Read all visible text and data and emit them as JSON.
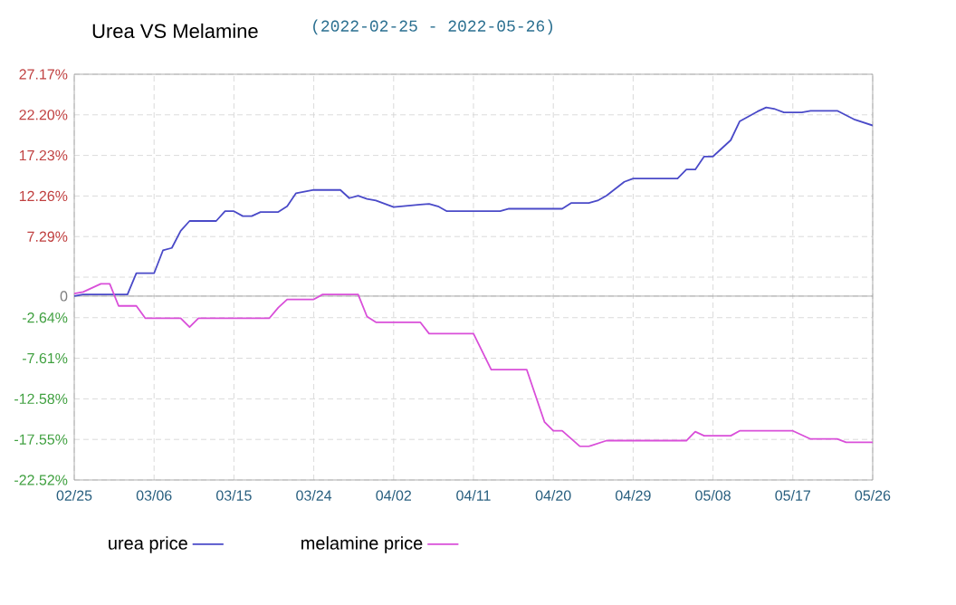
{
  "chart_data": {
    "type": "line",
    "title": "Urea VS Melamine",
    "subtitle": "(2022-02-25 - 2022-05-26)",
    "xlim": [
      "2022-02-25",
      "2022-05-26"
    ],
    "xticks": [
      {
        "value": "2022-02-25",
        "label": "02/25"
      },
      {
        "value": "2022-03-06",
        "label": "03/06"
      },
      {
        "value": "2022-03-15",
        "label": "03/15"
      },
      {
        "value": "2022-03-24",
        "label": "03/24"
      },
      {
        "value": "2022-04-02",
        "label": "04/02"
      },
      {
        "value": "2022-04-11",
        "label": "04/11"
      },
      {
        "value": "2022-04-20",
        "label": "04/20"
      },
      {
        "value": "2022-04-29",
        "label": "04/29"
      },
      {
        "value": "2022-05-08",
        "label": "05/08"
      },
      {
        "value": "2022-05-17",
        "label": "05/17"
      },
      {
        "value": "2022-05-26",
        "label": "05/26"
      }
    ],
    "ylim": [
      -22.52,
      27.17
    ],
    "yticks": [
      {
        "value": 27.17,
        "label": "27.17%"
      },
      {
        "value": 22.2,
        "label": "22.20%"
      },
      {
        "value": 17.23,
        "label": "17.23%"
      },
      {
        "value": 12.26,
        "label": "12.26%"
      },
      {
        "value": 7.29,
        "label": "7.29%"
      },
      {
        "value": 2.32,
        "label": null
      },
      0,
      {
        "value": -2.64,
        "label": "-2.64%"
      },
      {
        "value": -7.61,
        "label": "-7.61%"
      },
      {
        "value": -12.58,
        "label": "-12.58%"
      },
      {
        "value": -17.55,
        "label": "-17.55%"
      },
      {
        "value": -22.52,
        "label": "-22.52%"
      }
    ],
    "grid": true,
    "legend": "bottom",
    "marker": "none",
    "line_style": "solid",
    "series": [
      {
        "name": "urea price",
        "color": "#4a4ac8",
        "x": [
          "2022-02-25",
          "2022-02-26",
          "2022-03-03",
          "2022-03-04",
          "2022-03-06",
          "2022-03-07",
          "2022-03-08",
          "2022-03-09",
          "2022-03-10",
          "2022-03-13",
          "2022-03-14",
          "2022-03-15",
          "2022-03-16",
          "2022-03-17",
          "2022-03-18",
          "2022-03-20",
          "2022-03-21",
          "2022-03-22",
          "2022-03-24",
          "2022-03-27",
          "2022-03-28",
          "2022-03-29",
          "2022-03-30",
          "2022-03-31",
          "2022-04-02",
          "2022-04-05",
          "2022-04-06",
          "2022-04-07",
          "2022-04-08",
          "2022-04-14",
          "2022-04-15",
          "2022-04-21",
          "2022-04-22",
          "2022-04-24",
          "2022-04-25",
          "2022-04-26",
          "2022-04-28",
          "2022-04-29",
          "2022-05-04",
          "2022-05-05",
          "2022-05-06",
          "2022-05-07",
          "2022-05-08",
          "2022-05-10",
          "2022-05-11",
          "2022-05-13",
          "2022-05-14",
          "2022-05-15",
          "2022-05-16",
          "2022-05-18",
          "2022-05-19",
          "2022-05-22",
          "2022-05-24",
          "2022-05-26"
        ],
        "values": [
          0,
          0.2,
          0.2,
          2.8,
          2.8,
          5.6,
          5.9,
          8.0,
          9.2,
          9.2,
          10.4,
          10.4,
          9.8,
          9.8,
          10.3,
          10.3,
          11.0,
          12.6,
          13.0,
          13.0,
          12.0,
          12.3,
          11.9,
          11.7,
          10.9,
          11.2,
          11.3,
          11.0,
          10.4,
          10.4,
          10.7,
          10.7,
          11.4,
          11.4,
          11.7,
          12.3,
          14.0,
          14.4,
          14.4,
          15.5,
          15.5,
          17.1,
          17.1,
          19.1,
          21.4,
          22.6,
          23.1,
          22.9,
          22.5,
          22.5,
          22.7,
          22.7,
          21.6,
          20.9
        ]
      },
      {
        "name": "melamine price",
        "color": "#d94fd9",
        "x": [
          "2022-02-25",
          "2022-02-26",
          "2022-02-28",
          "2022-03-01",
          "2022-03-02",
          "2022-03-04",
          "2022-03-05",
          "2022-03-09",
          "2022-03-10",
          "2022-03-11",
          "2022-03-19",
          "2022-03-20",
          "2022-03-21",
          "2022-03-24",
          "2022-03-25",
          "2022-03-29",
          "2022-03-30",
          "2022-03-31",
          "2022-04-05",
          "2022-04-06",
          "2022-04-11",
          "2022-04-13",
          "2022-04-17",
          "2022-04-19",
          "2022-04-20",
          "2022-04-21",
          "2022-04-23",
          "2022-04-24",
          "2022-04-26",
          "2022-05-05",
          "2022-05-06",
          "2022-05-07",
          "2022-05-10",
          "2022-05-11",
          "2022-05-17",
          "2022-05-19",
          "2022-05-22",
          "2022-05-23",
          "2022-05-26"
        ],
        "values": [
          0.3,
          0.5,
          1.5,
          1.5,
          -1.2,
          -1.2,
          -2.7,
          -2.7,
          -3.8,
          -2.7,
          -2.7,
          -1.4,
          -0.4,
          -0.4,
          0.2,
          0.2,
          -2.5,
          -3.2,
          -3.2,
          -4.6,
          -4.6,
          -9.0,
          -9.0,
          -15.4,
          -16.5,
          -16.5,
          -18.4,
          -18.4,
          -17.7,
          -17.7,
          -16.6,
          -17.1,
          -17.1,
          -16.5,
          -16.5,
          -17.5,
          -17.5,
          -17.9,
          -17.9
        ]
      }
    ]
  }
}
